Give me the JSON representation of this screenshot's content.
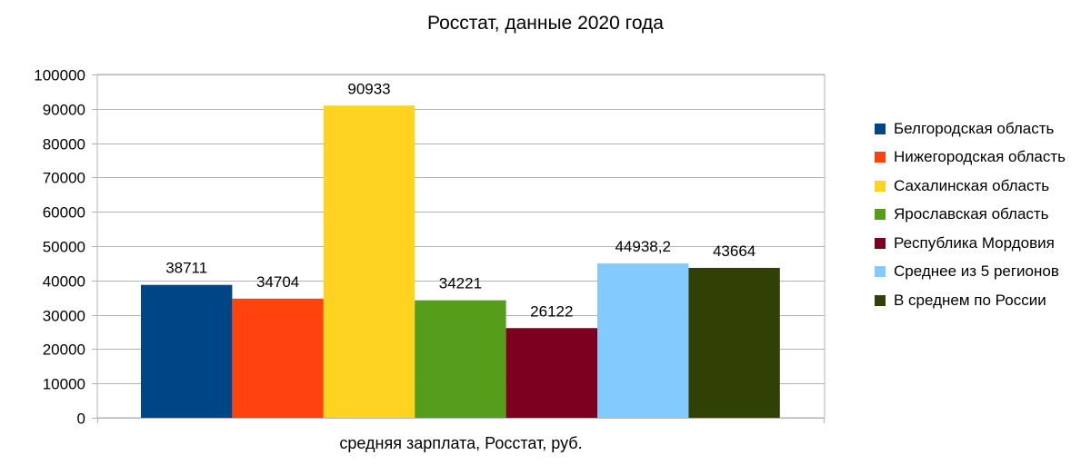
{
  "chart_data": {
    "type": "bar",
    "title": "Росстат, данные 2020 года",
    "categories": [
      "средняя зарплата, Росстат, руб."
    ],
    "xlabel": "",
    "ylabel": "",
    "ylim": [
      0,
      100000
    ],
    "yticks": [
      0,
      10000,
      20000,
      30000,
      40000,
      50000,
      60000,
      70000,
      80000,
      90000,
      100000
    ],
    "grid": true,
    "legend_position": "right",
    "series": [
      {
        "name": "Белгородская область",
        "values": [
          38711
        ],
        "label": "38711",
        "color": "#004586"
      },
      {
        "name": "Нижегородская область",
        "values": [
          34704
        ],
        "label": "34704",
        "color": "#ff420e"
      },
      {
        "name": "Сахалинская область",
        "values": [
          90933
        ],
        "label": "90933",
        "color": "#ffd320"
      },
      {
        "name": "Ярославская область",
        "values": [
          34221
        ],
        "label": "34221",
        "color": "#579d1c"
      },
      {
        "name": "Республика Мордовия",
        "values": [
          26122
        ],
        "label": "26122",
        "color": "#7e0021"
      },
      {
        "name": "Среднее из 5 регионов",
        "values": [
          44938.2
        ],
        "label": "44938,2",
        "color": "#83caff"
      },
      {
        "name": "В среднем по России",
        "values": [
          43664
        ],
        "label": "43664",
        "color": "#314004"
      }
    ]
  }
}
